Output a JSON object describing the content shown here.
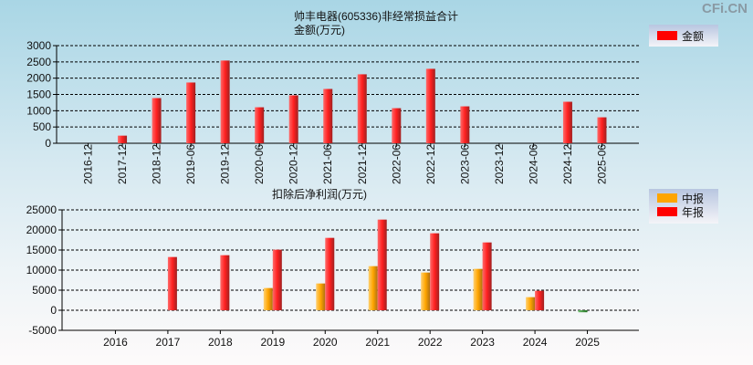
{
  "watermark": "CFi.CN",
  "chart_data": [
    {
      "type": "bar",
      "title": "帅丰电器(605336)非经常损益合计",
      "ylabel": "金额(万元)",
      "legend": [
        "金额"
      ],
      "legend_position": "top-right",
      "categories": [
        "2016-12",
        "2017-12",
        "2018-12",
        "2019-06",
        "2019-12",
        "2020-06",
        "2020-12",
        "2021-06",
        "2021-12",
        "2022-06",
        "2022-12",
        "2023-06",
        "2023-12",
        "2024-06",
        "2024-12",
        "2025-06"
      ],
      "values": [
        null,
        234,
        1388,
        1866,
        2541,
        1106,
        1472,
        1669,
        2119,
        1078,
        2287,
        1134,
        null,
        null,
        1275,
        797
      ],
      "yticks": [
        0,
        500,
        1000,
        1500,
        2000,
        2500,
        3000
      ],
      "ylim": [
        0,
        3000
      ],
      "grid": true,
      "color": "#ff0000"
    },
    {
      "type": "bar",
      "title": "扣除后净利润(万元)",
      "legend_position": "top-right",
      "categories": [
        "2016",
        "2017",
        "2018",
        "2019",
        "2020",
        "2021",
        "2022",
        "2023",
        "2024",
        "2025"
      ],
      "series": [
        {
          "name": "中报",
          "color": "#ffa500",
          "values": [
            null,
            null,
            null,
            5530,
            6670,
            10980,
            9390,
            10300,
            3260,
            -500
          ]
        },
        {
          "name": "年报",
          "color": "#ff0000",
          "values": [
            null,
            13260,
            13710,
            15080,
            18030,
            22580,
            19170,
            16890,
            4850,
            null
          ]
        }
      ],
      "yticks": [
        -5000,
        0,
        5000,
        10000,
        15000,
        20000,
        25000
      ],
      "ylim": [
        -5000,
        25000
      ],
      "grid": true
    }
  ]
}
